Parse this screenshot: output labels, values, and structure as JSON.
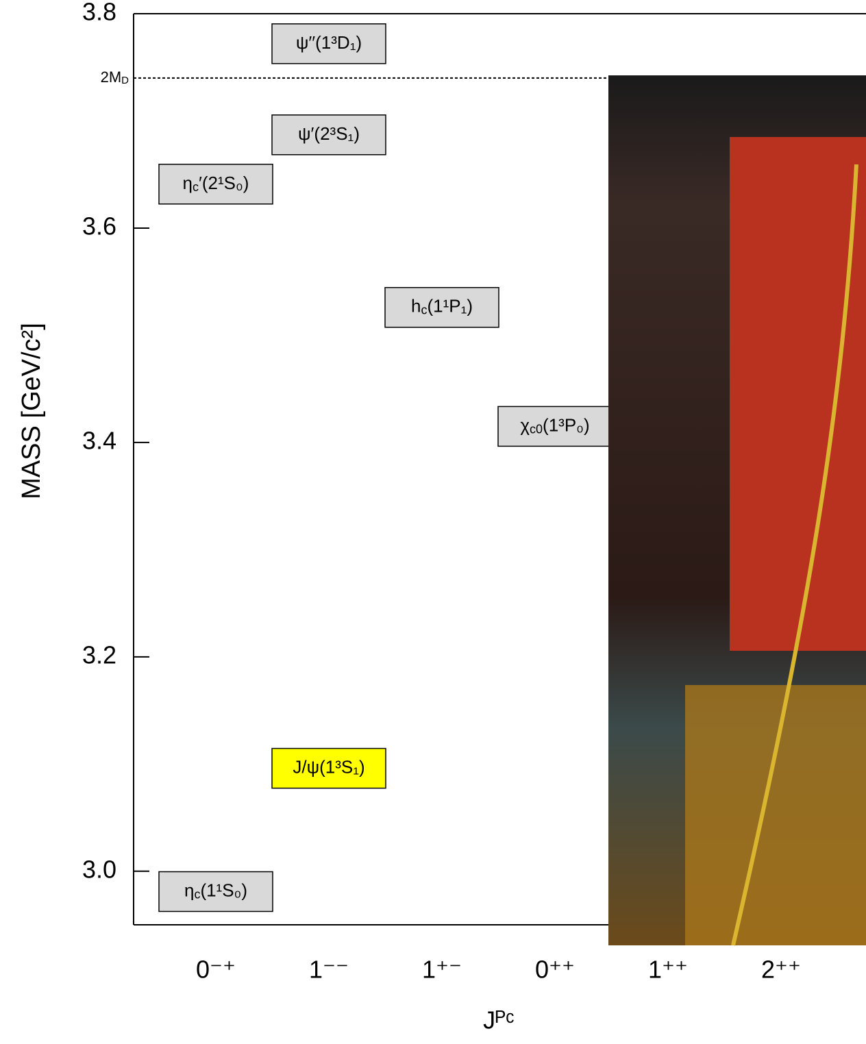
{
  "chart_data": {
    "type": "level",
    "xlabel": "Jᴾᶜ",
    "ylabel": "MASS   [GeV/c²]",
    "categories": [
      "0⁻⁺",
      "1⁻⁻",
      "1⁺⁻",
      "0⁺⁺",
      "1⁺⁺",
      "2⁺⁺"
    ],
    "ylim": [
      2.95,
      3.8
    ],
    "yticks": [
      {
        "value": 3,
        "label": "3.0"
      },
      3.2,
      3.4,
      3.6,
      3.8
    ],
    "threshold": {
      "value": 3.74,
      "label": "2M",
      "sub": "D"
    },
    "states": [
      {
        "name": "η",
        "sub": "c",
        "term": "(1¹S₀)",
        "category": 0,
        "mass": 2.981,
        "color": "#d9d9d9"
      },
      {
        "name": "η",
        "sub": "c",
        "term": "′(2¹S₀)",
        "category": 0,
        "mass": 3.641,
        "color": "#d9d9d9"
      },
      {
        "name": "J/ψ(1³S₁)",
        "category": 1,
        "mass": 3.096,
        "color": "#ffff00"
      },
      {
        "name": "ψ′(2³S₁)",
        "category": 1,
        "mass": 3.687,
        "color": "#d9d9d9"
      },
      {
        "name": "ψ′′(1³D₁)",
        "category": 1,
        "mass": 3.772,
        "color": "#d9d9d9"
      },
      {
        "name": "h",
        "sub": "c",
        "term": "(1¹P₁)",
        "category": 2,
        "mass": 3.526,
        "color": "#d9d9d9"
      },
      {
        "name": "χ",
        "sub": "c0",
        "term": "(1³P₀)",
        "category": 3,
        "mass": 3.415,
        "color": "#d9d9d9"
      }
    ]
  }
}
